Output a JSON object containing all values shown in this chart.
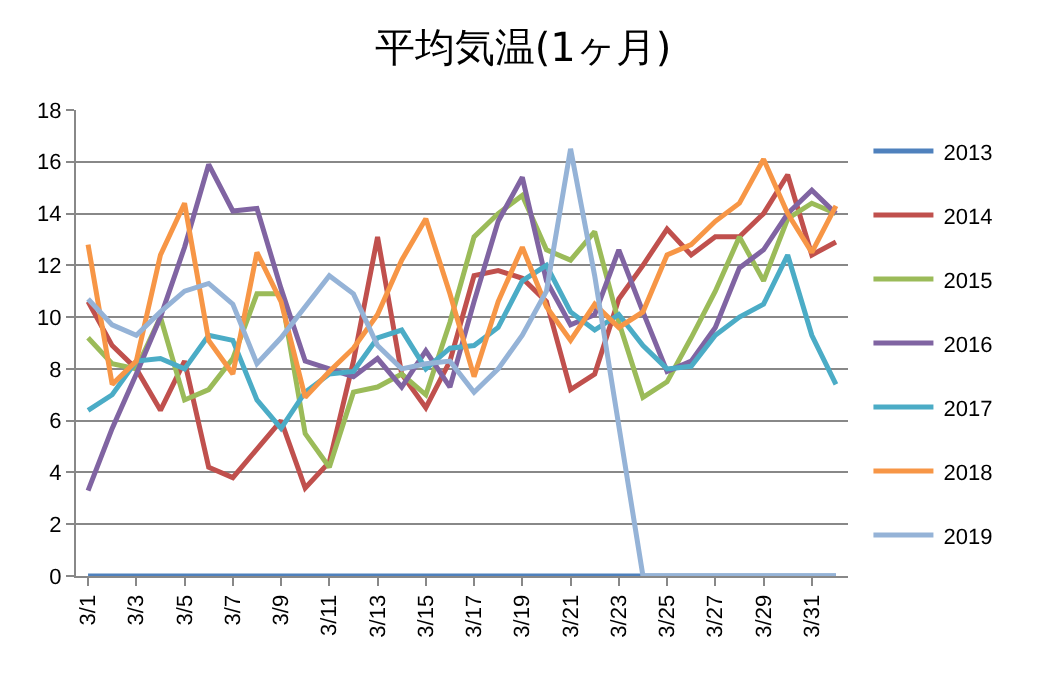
{
  "chart_data": {
    "type": "line",
    "title": "平均気温(1ヶ月)",
    "categories": [
      "3/1",
      null,
      "3/3",
      null,
      "3/5",
      null,
      "3/7",
      null,
      "3/9",
      null,
      "3/11",
      null,
      "3/13",
      null,
      "3/15",
      null,
      "3/17",
      null,
      "3/19",
      null,
      "3/21",
      null,
      "3/23",
      null,
      "3/25",
      null,
      "3/27",
      null,
      "3/29",
      null,
      "3/31",
      null
    ],
    "series": [
      {
        "name": "2013",
        "color": "#4f81bd",
        "values": [
          0,
          0,
          0,
          0,
          0,
          0,
          0,
          0,
          0,
          0,
          0,
          0,
          0,
          0,
          0,
          0,
          0,
          0,
          0,
          0,
          0,
          0,
          0,
          0,
          0,
          0,
          0,
          0,
          0,
          0,
          0,
          0
        ]
      },
      {
        "name": "2014",
        "color": "#c0504d",
        "values": [
          10.6,
          8.9,
          8.0,
          6.4,
          8.3,
          4.2,
          3.8,
          4.9,
          6.0,
          3.4,
          4.4,
          8.3,
          13.1,
          7.8,
          6.5,
          8.3,
          11.6,
          11.8,
          11.5,
          10.6,
          7.2,
          7.8,
          10.7,
          12.0,
          13.4,
          12.4,
          13.1,
          13.1,
          14.0,
          15.5,
          12.4,
          12.9
        ]
      },
      {
        "name": "2015",
        "color": "#9bbb59",
        "values": [
          9.2,
          8.2,
          8.0,
          10.0,
          6.8,
          7.2,
          8.4,
          10.9,
          10.9,
          5.5,
          4.2,
          7.1,
          7.3,
          7.8,
          7.0,
          9.8,
          13.1,
          14.0,
          14.7,
          12.6,
          12.2,
          13.3,
          9.8,
          6.9,
          7.5,
          9.2,
          11.0,
          13.1,
          11.4,
          13.8,
          14.4,
          14.0
        ]
      },
      {
        "name": "2016",
        "color": "#8064a2",
        "values": [
          3.3,
          5.7,
          7.8,
          10.0,
          12.7,
          15.9,
          14.1,
          14.2,
          11.1,
          8.3,
          8.0,
          7.7,
          8.4,
          7.3,
          8.7,
          7.3,
          10.6,
          13.7,
          15.4,
          11.4,
          9.7,
          10.1,
          12.6,
          10.2,
          7.9,
          8.3,
          9.6,
          11.9,
          12.6,
          14.0,
          14.9,
          14.0
        ]
      },
      {
        "name": "2017",
        "color": "#4bacc6",
        "values": [
          6.4,
          7.0,
          8.3,
          8.4,
          8.0,
          9.3,
          9.1,
          6.8,
          5.7,
          7.1,
          7.8,
          7.9,
          9.2,
          9.5,
          8.0,
          8.8,
          8.9,
          9.6,
          11.4,
          12.0,
          10.2,
          9.5,
          10.1,
          8.9,
          8.0,
          8.1,
          9.3,
          10.0,
          10.5,
          12.4,
          9.3,
          7.4
        ]
      },
      {
        "name": "2018",
        "color": "#f79646",
        "values": [
          12.8,
          7.4,
          8.3,
          12.4,
          14.4,
          9.1,
          7.8,
          12.5,
          10.6,
          6.9,
          7.9,
          8.8,
          10.1,
          12.2,
          13.8,
          10.9,
          7.7,
          10.6,
          12.7,
          10.4,
          9.1,
          10.5,
          9.6,
          10.2,
          12.4,
          12.8,
          13.7,
          14.4,
          16.1,
          14.0,
          12.5,
          14.3
        ]
      },
      {
        "name": "2019",
        "color": "#95b3d7",
        "values": [
          10.7,
          9.7,
          9.3,
          10.2,
          11.0,
          11.3,
          10.5,
          8.2,
          9.2,
          10.4,
          11.6,
          10.9,
          8.9,
          8.0,
          8.2,
          8.3,
          7.1,
          8.0,
          9.3,
          11.0,
          16.5,
          11.6,
          5.8,
          0,
          0,
          0,
          0,
          0,
          0,
          0,
          0,
          0
        ]
      }
    ],
    "ylim": [
      0,
      18
    ],
    "yticks": [
      0,
      2,
      4,
      6,
      8,
      10,
      12,
      14,
      16,
      18
    ],
    "grid": "y",
    "legend": "right",
    "marker": "none",
    "line_style": "solid"
  }
}
